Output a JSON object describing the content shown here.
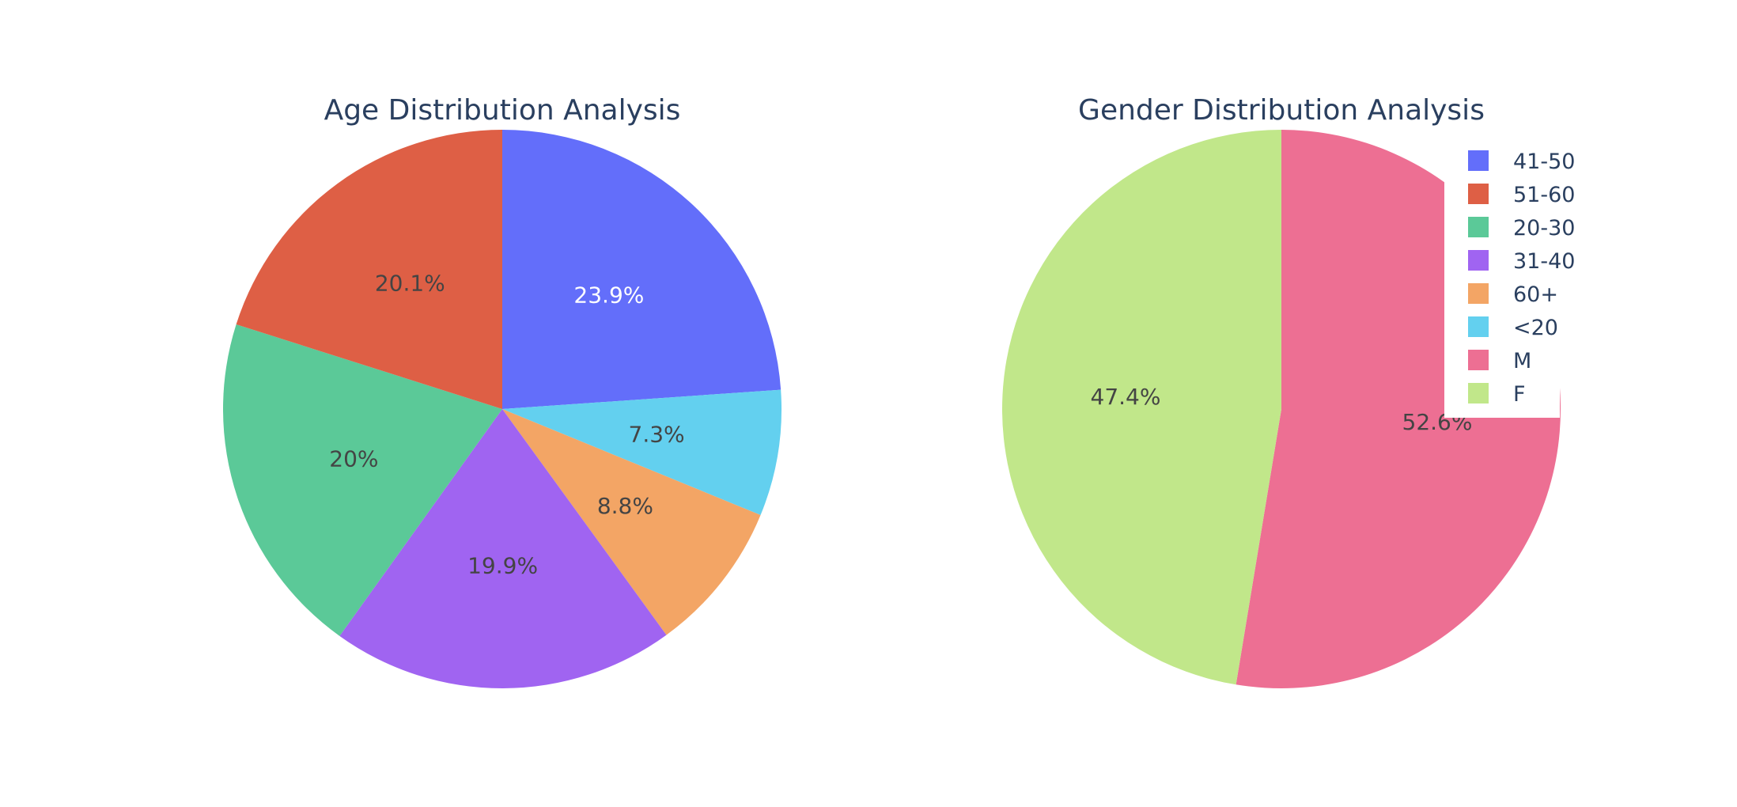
{
  "chart_data": [
    {
      "type": "pie",
      "title": "Age Distribution Analysis",
      "categories": [
        "41-50",
        "<20",
        "60+",
        "31-40",
        "20-30",
        "51-60"
      ],
      "values": [
        23.9,
        7.3,
        8.8,
        19.9,
        20.0,
        20.1
      ],
      "labels": [
        "23.9%",
        "7.3%",
        "8.8%",
        "19.9%",
        "20%",
        "20.1%"
      ],
      "colors": [
        "#636efa",
        "#63d0ef",
        "#f3a565",
        "#a064f1",
        "#5bc998",
        "#de5f45"
      ],
      "label_colors": [
        "#ffffff",
        "#444444",
        "#444444",
        "#444444",
        "#444444",
        "#444444"
      ],
      "direction": "clockwise",
      "start": "top"
    },
    {
      "type": "pie",
      "title": "Gender Distribution Analysis",
      "categories": [
        "M",
        "F"
      ],
      "values": [
        52.6,
        47.4
      ],
      "labels": [
        "52.6%",
        "47.4%"
      ],
      "colors": [
        "#ed6f93",
        "#c1e78a"
      ],
      "label_colors": [
        "#444444",
        "#444444"
      ],
      "direction": "clockwise",
      "start": "top"
    }
  ],
  "legend": {
    "placement": "top-right",
    "items": [
      {
        "label": "41-50",
        "color": "#636efa"
      },
      {
        "label": "51-60",
        "color": "#de5f45"
      },
      {
        "label": "20-30",
        "color": "#5bc998"
      },
      {
        "label": "31-40",
        "color": "#a064f1"
      },
      {
        "label": "60+",
        "color": "#f3a565"
      },
      {
        "label": "<20",
        "color": "#63d0ef"
      },
      {
        "label": "M",
        "color": "#ed6f93"
      },
      {
        "label": "F",
        "color": "#c1e78a"
      }
    ]
  }
}
